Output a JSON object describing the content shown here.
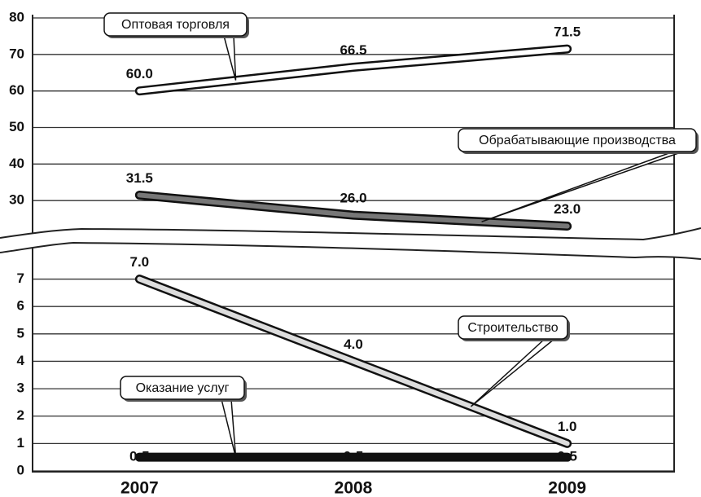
{
  "chart_data": [
    {
      "type": "line",
      "ylim": [
        20,
        80
      ],
      "yticks": [
        30,
        40,
        50,
        60,
        70,
        80
      ],
      "grid": true,
      "series": [
        {
          "name": "Оптовая торговля",
          "color": "#ffffff",
          "values": [
            60,
            66.5,
            71.5
          ],
          "value_labels": [
            "60.0",
            "66.5",
            "71.5"
          ]
        },
        {
          "name": "Обрабатывающие производства",
          "color": "#777777",
          "values": [
            31.5,
            26,
            23
          ],
          "value_labels": [
            "31.5",
            "26.0",
            "23.0"
          ]
        }
      ]
    },
    {
      "type": "line",
      "categories": [
        "2007",
        "2008",
        "2009"
      ],
      "ylim": [
        0,
        7.7
      ],
      "yticks": [
        0,
        1,
        2,
        3,
        4,
        5,
        6,
        7
      ],
      "grid": true,
      "series": [
        {
          "name": "Строительство",
          "color": "#dddddd",
          "values": [
            7,
            4,
            1
          ],
          "value_labels": [
            "7.0",
            "4.0",
            "1.0"
          ]
        },
        {
          "name": "Оказание услуг",
          "color": "#111111",
          "values": [
            0.5,
            0.5,
            0.5
          ],
          "value_labels": [
            "0:5",
            "0:5",
            "0:5"
          ]
        }
      ]
    }
  ]
}
